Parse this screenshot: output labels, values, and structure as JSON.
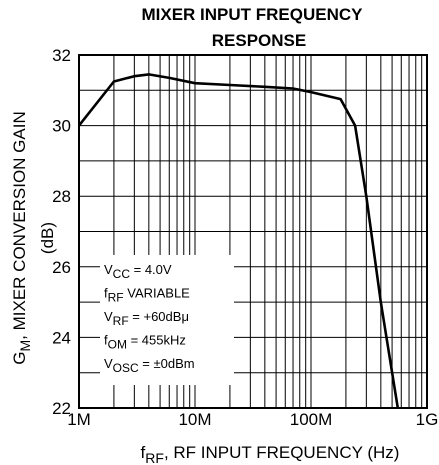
{
  "chart_data": {
    "type": "line",
    "title_lines": [
      "MIXER INPUT FREQUENCY",
      "RESPONSE"
    ],
    "xlabel": {
      "main": "f",
      "sub": "RF",
      "rest": ", RF INPUT FREQUENCY (Hz)"
    },
    "ylabel": {
      "main": "G",
      "sub": "M",
      "rest": ", MIXER CONVERSION GAIN"
    },
    "ylabel_units": "(dB)",
    "x_scale": "log",
    "xlim": [
      1000000,
      1000000000
    ],
    "ylim": [
      22,
      32
    ],
    "x_ticks": [
      {
        "value": 1000000,
        "label": "1M"
      },
      {
        "value": 10000000,
        "label": "10M"
      },
      {
        "value": 100000000,
        "label": "100M"
      },
      {
        "value": 1000000000,
        "label": "1G"
      }
    ],
    "y_ticks": [
      {
        "value": 22,
        "label": "22"
      },
      {
        "value": 24,
        "label": "24"
      },
      {
        "value": 26,
        "label": "26"
      },
      {
        "value": 28,
        "label": "28"
      },
      {
        "value": 30,
        "label": "30"
      },
      {
        "value": 32,
        "label": "32"
      }
    ],
    "grid": true,
    "series": [
      {
        "x": [
          1000000,
          2000000,
          3000000,
          4000000,
          6000000,
          10000000,
          20000000,
          40000000,
          70000000,
          100000000,
          180000000,
          240000000,
          300000000,
          400000000,
          560000000
        ],
        "y": [
          30.0,
          31.25,
          31.4,
          31.45,
          31.35,
          31.2,
          31.15,
          31.1,
          31.05,
          30.95,
          30.75,
          30.0,
          28.0,
          25.0,
          22.0
        ]
      }
    ],
    "conditions": [
      {
        "main": "V",
        "sub": "CC",
        "rest": " = 4.0V"
      },
      {
        "main": "f",
        "sub": "RF",
        "rest": " VARIABLE"
      },
      {
        "main": "V",
        "sub": "RF",
        "rest": " = +60dBμ"
      },
      {
        "main": "f",
        "sub": "OM",
        "rest": " = 455kHz"
      },
      {
        "main": "V",
        "sub": "OSC",
        "rest": " = ±0dBm"
      }
    ]
  }
}
